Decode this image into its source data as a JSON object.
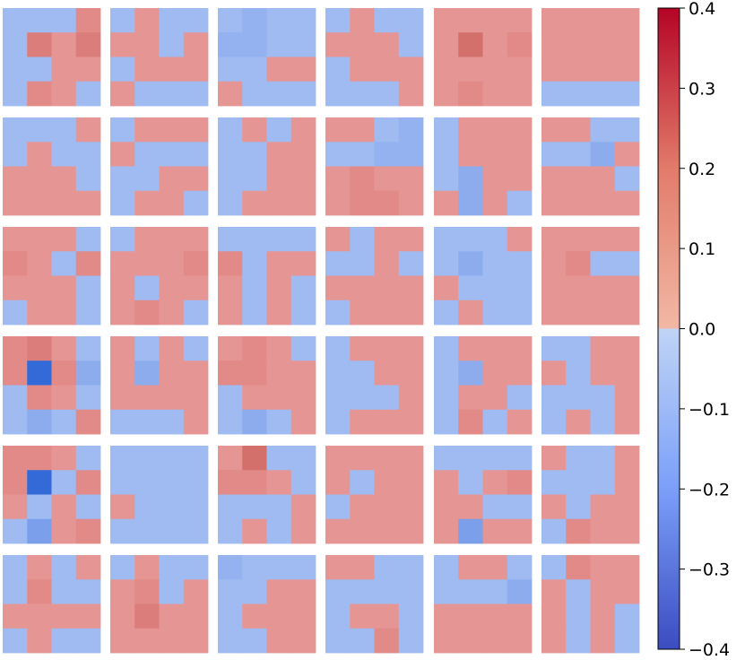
{
  "chart_data": {
    "type": "heatmap",
    "title": "",
    "layout": "6x6 grid of 4x4 heatmap panels",
    "grid_rows": 6,
    "grid_cols": 6,
    "colormap": "coolwarm (diverging, blue-to-red)",
    "colorbar": {
      "vmin": -0.4,
      "vmax": 0.4,
      "ticks": [
        0.4,
        0.3,
        0.2,
        0.1,
        0.0,
        -0.1,
        -0.2,
        -0.3,
        -0.4
      ],
      "tick_labels": [
        "0.4",
        "0.3",
        "0.2",
        "0.1",
        "0.0",
        "−0.1",
        "−0.2",
        "−0.3",
        "−0.4"
      ],
      "placement": "right"
    },
    "panels": [
      [
        [
          [
            -0.05,
            -0.05,
            -0.05,
            0.1
          ],
          [
            -0.05,
            0.15,
            0.05,
            0.15
          ],
          [
            -0.05,
            -0.05,
            0.05,
            0.05
          ],
          [
            -0.05,
            0.1,
            0.05,
            -0.05
          ]
        ],
        [
          [
            -0.05,
            0.05,
            -0.05,
            -0.05
          ],
          [
            0.05,
            0.05,
            -0.05,
            0.05
          ],
          [
            -0.05,
            0.05,
            0.05,
            0.05
          ],
          [
            0.05,
            -0.05,
            -0.05,
            -0.05
          ]
        ],
        [
          [
            -0.05,
            -0.08,
            -0.05,
            -0.05
          ],
          [
            -0.08,
            -0.08,
            -0.05,
            -0.05
          ],
          [
            -0.05,
            -0.05,
            0.05,
            0.05
          ],
          [
            0.05,
            -0.05,
            -0.05,
            -0.05
          ]
        ],
        [
          [
            -0.05,
            0.05,
            -0.05,
            -0.05
          ],
          [
            0.05,
            0.05,
            0.05,
            -0.05
          ],
          [
            -0.05,
            0.05,
            0.05,
            0.05
          ],
          [
            -0.05,
            -0.05,
            -0.05,
            0.05
          ]
        ],
        [
          [
            0.05,
            0.05,
            0.05,
            0.05
          ],
          [
            0.05,
            0.2,
            0.05,
            0.1
          ],
          [
            0.05,
            0.05,
            0.05,
            0.05
          ],
          [
            0.05,
            0.1,
            0.05,
            0.05
          ]
        ],
        [
          [
            0.05,
            0.05,
            0.05,
            0.05
          ],
          [
            0.05,
            0.05,
            0.05,
            0.05
          ],
          [
            0.05,
            0.05,
            0.05,
            0.05
          ],
          [
            -0.05,
            -0.05,
            -0.05,
            -0.05
          ]
        ]
      ],
      [
        [
          [
            -0.05,
            -0.05,
            -0.05,
            0.05
          ],
          [
            -0.05,
            0.05,
            -0.05,
            -0.05
          ],
          [
            0.05,
            0.05,
            0.05,
            -0.05
          ],
          [
            0.05,
            0.05,
            0.05,
            0.05
          ]
        ],
        [
          [
            -0.05,
            0.05,
            0.05,
            0.05
          ],
          [
            0.05,
            -0.05,
            -0.05,
            -0.05
          ],
          [
            -0.05,
            -0.05,
            0.05,
            0.05
          ],
          [
            -0.05,
            0.05,
            0.05,
            -0.05
          ]
        ],
        [
          [
            -0.05,
            0.05,
            -0.05,
            0.05
          ],
          [
            -0.05,
            -0.05,
            0.05,
            0.05
          ],
          [
            -0.05,
            -0.05,
            0.05,
            0.05
          ],
          [
            -0.05,
            0.05,
            0.05,
            0.05
          ]
        ],
        [
          [
            0.05,
            0.05,
            -0.05,
            -0.08
          ],
          [
            -0.05,
            -0.05,
            -0.08,
            -0.08
          ],
          [
            0.05,
            0.1,
            0.05,
            0.05
          ],
          [
            0.05,
            0.1,
            0.1,
            0.05
          ]
        ],
        [
          [
            -0.05,
            0.05,
            0.05,
            0.05
          ],
          [
            -0.05,
            0.05,
            0.05,
            0.05
          ],
          [
            -0.05,
            -0.1,
            0.05,
            0.05
          ],
          [
            0.05,
            -0.1,
            0.05,
            -0.05
          ]
        ],
        [
          [
            0.05,
            0.05,
            -0.05,
            -0.05
          ],
          [
            -0.05,
            -0.05,
            -0.1,
            0.05
          ],
          [
            0.05,
            0.05,
            0.05,
            -0.05
          ],
          [
            0.05,
            0.05,
            0.05,
            0.05
          ]
        ]
      ],
      [
        [
          [
            0.05,
            0.05,
            0.05,
            -0.05
          ],
          [
            0.1,
            0.05,
            -0.05,
            0.1
          ],
          [
            0.05,
            0.05,
            0.05,
            -0.05
          ],
          [
            -0.05,
            0.05,
            0.05,
            -0.05
          ]
        ],
        [
          [
            -0.05,
            0.05,
            0.05,
            0.05
          ],
          [
            0.05,
            0.05,
            0.05,
            0.1
          ],
          [
            0.05,
            -0.05,
            0.05,
            0.05
          ],
          [
            0.05,
            0.1,
            0.05,
            -0.05
          ]
        ],
        [
          [
            -0.05,
            -0.05,
            -0.05,
            -0.05
          ],
          [
            0.1,
            -0.05,
            0.05,
            0.05
          ],
          [
            0.05,
            -0.05,
            0.05,
            -0.05
          ],
          [
            0.05,
            -0.05,
            0.05,
            -0.05
          ]
        ],
        [
          [
            0.05,
            -0.05,
            0.05,
            0.05
          ],
          [
            -0.05,
            -0.05,
            0.05,
            -0.05
          ],
          [
            0.05,
            0.05,
            0.05,
            0.05
          ],
          [
            -0.05,
            0.05,
            0.05,
            0.05
          ]
        ],
        [
          [
            -0.05,
            -0.05,
            -0.05,
            0.05
          ],
          [
            -0.05,
            -0.1,
            -0.05,
            -0.05
          ],
          [
            0.05,
            -0.05,
            -0.05,
            -0.05
          ],
          [
            -0.05,
            0.05,
            -0.05,
            -0.05
          ]
        ],
        [
          [
            0.05,
            0.05,
            0.05,
            0.05
          ],
          [
            0.05,
            0.1,
            -0.05,
            -0.05
          ],
          [
            0.05,
            0.05,
            0.05,
            0.05
          ],
          [
            0.05,
            0.05,
            0.05,
            0.05
          ]
        ]
      ],
      [
        [
          [
            0.1,
            0.15,
            0.05,
            -0.05
          ],
          [
            0.1,
            -0.35,
            0.1,
            -0.1
          ],
          [
            -0.05,
            0.1,
            0.05,
            -0.05
          ],
          [
            -0.05,
            -0.1,
            -0.05,
            0.1
          ]
        ],
        [
          [
            0.05,
            -0.05,
            0.05,
            -0.05
          ],
          [
            0.05,
            -0.1,
            0.05,
            0.05
          ],
          [
            0.05,
            0.05,
            0.05,
            0.05
          ],
          [
            -0.05,
            -0.05,
            -0.05,
            0.05
          ]
        ],
        [
          [
            0.05,
            0.1,
            0.05,
            -0.05
          ],
          [
            0.1,
            0.1,
            0.05,
            0.05
          ],
          [
            -0.05,
            0.05,
            0.05,
            0.05
          ],
          [
            -0.05,
            -0.1,
            -0.05,
            0.05
          ]
        ],
        [
          [
            -0.05,
            0.05,
            0.05,
            0.05
          ],
          [
            -0.05,
            -0.05,
            0.05,
            0.05
          ],
          [
            -0.05,
            -0.05,
            -0.05,
            0.05
          ],
          [
            -0.05,
            0.05,
            0.05,
            0.05
          ]
        ],
        [
          [
            -0.05,
            0.05,
            0.05,
            0.05
          ],
          [
            -0.05,
            -0.1,
            0.05,
            0.05
          ],
          [
            -0.05,
            0.05,
            0.05,
            -0.05
          ],
          [
            -0.05,
            0.1,
            -0.05,
            0.05
          ]
        ],
        [
          [
            -0.05,
            -0.05,
            0.05,
            0.05
          ],
          [
            0.05,
            -0.05,
            0.05,
            0.05
          ],
          [
            -0.05,
            -0.05,
            -0.05,
            0.05
          ],
          [
            -0.05,
            0.05,
            -0.05,
            0.05
          ]
        ]
      ],
      [
        [
          [
            0.1,
            0.1,
            0.05,
            -0.05
          ],
          [
            0.1,
            -0.35,
            -0.05,
            0.1
          ],
          [
            0.05,
            -0.05,
            0.05,
            -0.05
          ],
          [
            -0.05,
            -0.15,
            0.05,
            0.1
          ]
        ],
        [
          [
            -0.05,
            -0.05,
            -0.05,
            -0.05
          ],
          [
            -0.05,
            -0.05,
            -0.05,
            -0.05
          ],
          [
            0.05,
            -0.05,
            -0.05,
            -0.05
          ],
          [
            -0.05,
            -0.05,
            -0.05,
            -0.05
          ]
        ],
        [
          [
            0.05,
            0.2,
            -0.05,
            -0.05
          ],
          [
            0.1,
            0.1,
            0.05,
            -0.05
          ],
          [
            -0.05,
            -0.05,
            -0.05,
            0.05
          ],
          [
            -0.05,
            0.05,
            -0.05,
            0.05
          ]
        ],
        [
          [
            0.05,
            0.05,
            0.05,
            0.05
          ],
          [
            0.05,
            -0.05,
            0.05,
            0.05
          ],
          [
            -0.05,
            0.05,
            0.05,
            0.05
          ],
          [
            0.05,
            0.05,
            0.05,
            0.05
          ]
        ],
        [
          [
            -0.05,
            -0.05,
            -0.05,
            -0.05
          ],
          [
            0.05,
            -0.05,
            0.05,
            0.1
          ],
          [
            0.05,
            0.05,
            -0.05,
            -0.05
          ],
          [
            0.05,
            -0.15,
            0.05,
            0.05
          ]
        ],
        [
          [
            0.05,
            -0.05,
            -0.05,
            0.05
          ],
          [
            -0.05,
            -0.05,
            -0.05,
            0.05
          ],
          [
            0.05,
            -0.05,
            0.05,
            0.05
          ],
          [
            -0.05,
            0.1,
            0.05,
            0.05
          ]
        ]
      ],
      [
        [
          [
            -0.05,
            0.05,
            -0.05,
            0.05
          ],
          [
            -0.05,
            0.1,
            -0.05,
            -0.05
          ],
          [
            0.05,
            0.05,
            0.05,
            0.05
          ],
          [
            -0.05,
            0.05,
            -0.05,
            -0.05
          ]
        ],
        [
          [
            -0.05,
            0.05,
            -0.05,
            -0.05
          ],
          [
            0.05,
            0.1,
            -0.05,
            0.05
          ],
          [
            0.05,
            0.15,
            0.05,
            0.05
          ],
          [
            0.05,
            0.05,
            0.05,
            0.05
          ]
        ],
        [
          [
            -0.08,
            -0.05,
            -0.05,
            -0.05
          ],
          [
            -0.05,
            -0.05,
            0.05,
            0.05
          ],
          [
            -0.05,
            0.05,
            0.05,
            0.05
          ],
          [
            -0.05,
            -0.05,
            0.05,
            0.05
          ]
        ],
        [
          [
            0.05,
            0.05,
            -0.05,
            -0.05
          ],
          [
            -0.05,
            -0.05,
            -0.05,
            -0.05
          ],
          [
            -0.05,
            0.05,
            0.05,
            -0.05
          ],
          [
            -0.05,
            -0.05,
            0.1,
            -0.05
          ]
        ],
        [
          [
            -0.05,
            0.05,
            0.05,
            -0.05
          ],
          [
            -0.05,
            -0.05,
            -0.05,
            -0.1
          ],
          [
            0.05,
            0.05,
            0.05,
            0.05
          ],
          [
            0.05,
            0.05,
            0.05,
            0.05
          ]
        ],
        [
          [
            -0.05,
            0.1,
            0.05,
            0.05
          ],
          [
            0.05,
            -0.05,
            0.05,
            0.05
          ],
          [
            0.05,
            -0.05,
            0.05,
            -0.05
          ],
          [
            0.05,
            -0.05,
            0.05,
            -0.05
          ]
        ]
      ]
    ]
  }
}
